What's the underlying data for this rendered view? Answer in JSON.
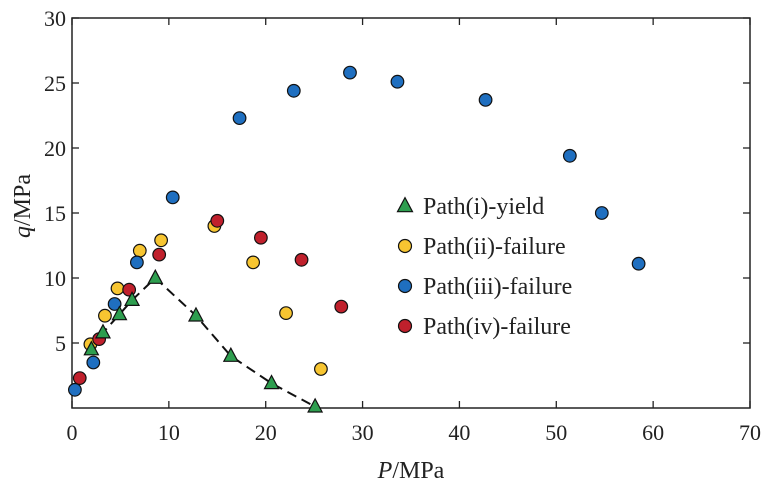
{
  "chart_data": {
    "type": "scatter",
    "xlabel": {
      "italic": "P",
      "rest": "/MPa"
    },
    "ylabel": {
      "italic": "q",
      "rest": "/MPa"
    },
    "xlim": [
      0,
      70
    ],
    "ylim": [
      0,
      30
    ],
    "x_ticks": [
      0,
      10,
      20,
      30,
      40,
      50,
      60,
      70
    ],
    "y_ticks": [
      5,
      10,
      15,
      20,
      25,
      30
    ],
    "x_tick_labels": [
      "0",
      "10",
      "20",
      "30",
      "40",
      "50",
      "60",
      "70"
    ],
    "y_tick_labels": [
      "5",
      "10",
      "15",
      "20",
      "25",
      "30"
    ],
    "grid": false,
    "legend_placement": "center-right",
    "series": [
      {
        "name": "Path(i)-yield",
        "marker": "triangle",
        "color": "#2e9e4f",
        "line": "dashed",
        "x": [
          2.0,
          3.2,
          4.9,
          6.2,
          8.6,
          12.8,
          16.4,
          20.6,
          25.1
        ],
        "y": [
          4.5,
          5.8,
          7.2,
          8.3,
          10.0,
          7.1,
          4.0,
          1.9,
          0.1
        ]
      },
      {
        "name": "Path(ii)-failure",
        "marker": "circle",
        "color": "#f7c531",
        "x": [
          1.9,
          3.4,
          4.7,
          7.0,
          9.2,
          14.7,
          18.7,
          22.1,
          25.7
        ],
        "y": [
          4.9,
          7.1,
          9.2,
          12.1,
          12.9,
          14.0,
          11.2,
          7.3,
          3.0
        ]
      },
      {
        "name": "Path(iii)-failure",
        "marker": "circle",
        "color": "#1f6fc0",
        "x": [
          0.3,
          2.2,
          4.4,
          6.7,
          10.4,
          17.3,
          22.9,
          28.7,
          33.6,
          42.7,
          51.4,
          54.7,
          58.5
        ],
        "y": [
          1.4,
          3.5,
          8.0,
          11.2,
          16.2,
          22.3,
          24.4,
          25.8,
          25.1,
          23.7,
          19.4,
          15.0,
          11.1
        ]
      },
      {
        "name": "Path(iv)-failure",
        "marker": "circle",
        "color": "#c0202c",
        "x": [
          0.8,
          2.8,
          5.9,
          9.0,
          15.0,
          19.5,
          23.7,
          27.8
        ],
        "y": [
          2.3,
          5.3,
          9.1,
          11.8,
          14.4,
          13.1,
          11.4,
          7.8
        ]
      }
    ]
  }
}
